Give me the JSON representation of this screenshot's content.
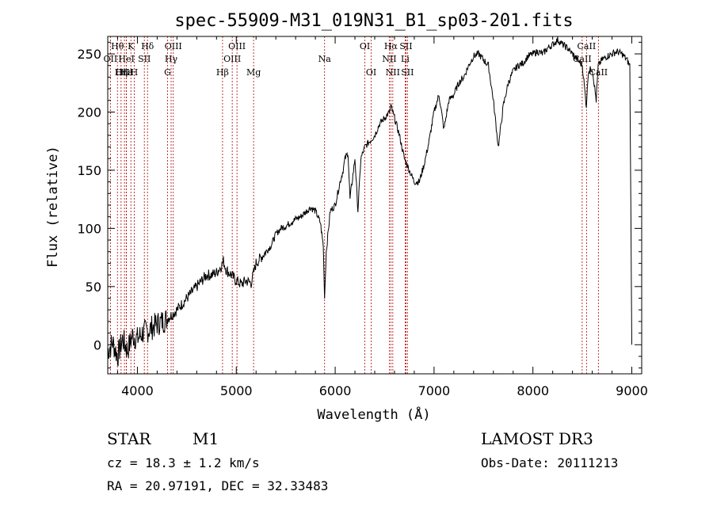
{
  "chart_data": {
    "type": "line",
    "title": "spec-55909-M31_019N31_B1_sp03-201.fits",
    "xlabel": "Wavelength (Å)",
    "ylabel": "Flux (relative)",
    "xlim": [
      3700,
      9100
    ],
    "ylim": [
      -25,
      265
    ],
    "x_ticks": [
      4000,
      5000,
      6000,
      7000,
      8000,
      9000
    ],
    "y_ticks": [
      0,
      50,
      100,
      150,
      200,
      250
    ],
    "series": [
      {
        "name": "spectrum",
        "x": [
          3700,
          3750,
          3800,
          3850,
          3900,
          3950,
          4000,
          4050,
          4100,
          4150,
          4200,
          4250,
          4300,
          4350,
          4400,
          4450,
          4500,
          4550,
          4600,
          4650,
          4700,
          4750,
          4800,
          4850,
          4870,
          4900,
          4950,
          5000,
          5050,
          5100,
          5150,
          5200,
          5250,
          5300,
          5350,
          5400,
          5450,
          5500,
          5550,
          5600,
          5650,
          5700,
          5750,
          5800,
          5850,
          5880,
          5893,
          5910,
          5950,
          6000,
          6050,
          6080,
          6100,
          6130,
          6150,
          6200,
          6230,
          6260,
          6300,
          6350,
          6400,
          6450,
          6500,
          6550,
          6563,
          6600,
          6650,
          6700,
          6750,
          6800,
          6850,
          6900,
          6950,
          7000,
          7050,
          7100,
          7150,
          7200,
          7250,
          7300,
          7350,
          7400,
          7450,
          7500,
          7550,
          7600,
          7650,
          7700,
          7750,
          7800,
          7850,
          7900,
          7950,
          8000,
          8050,
          8100,
          8150,
          8200,
          8250,
          8300,
          8350,
          8400,
          8450,
          8500,
          8540,
          8560,
          8600,
          8640,
          8660,
          8700,
          8750,
          8800,
          8850,
          8900,
          8950,
          8980,
          9000
        ],
        "y": [
          -5,
          2,
          -10,
          5,
          -5,
          8,
          5,
          10,
          12,
          15,
          18,
          20,
          22,
          26,
          30,
          35,
          40,
          45,
          50,
          55,
          60,
          60,
          62,
          68,
          72,
          64,
          60,
          55,
          52,
          55,
          53,
          70,
          75,
          80,
          85,
          95,
          100,
          102,
          105,
          108,
          110,
          114,
          118,
          115,
          105,
          85,
          40,
          80,
          115,
          120,
          140,
          150,
          160,
          165,
          125,
          160,
          115,
          160,
          170,
          175,
          180,
          190,
          195,
          200,
          205,
          195,
          180,
          160,
          150,
          140,
          140,
          155,
          175,
          200,
          215,
          185,
          210,
          215,
          225,
          230,
          240,
          248,
          250,
          245,
          240,
          210,
          170,
          205,
          225,
          235,
          240,
          242,
          248,
          250,
          252,
          250,
          255,
          258,
          262,
          258,
          255,
          250,
          245,
          240,
          205,
          235,
          238,
          210,
          240,
          245,
          248,
          250,
          252,
          250,
          245,
          240,
          0
        ]
      }
    ],
    "lines": [
      {
        "name": "Hθ",
        "x": 3798,
        "row": 1
      },
      {
        "name": "OII",
        "x": 3727,
        "row": 2
      },
      {
        "name": "OIII",
        "x": 3869,
        "row": 3
      },
      {
        "name": "Hε",
        "x": 3889,
        "row": 3
      },
      {
        "name": "Hη",
        "x": 3835,
        "row": 3
      },
      {
        "name": "K",
        "x": 3934,
        "row": 1
      },
      {
        "name": "HeI",
        "x": 3889,
        "row": 2
      },
      {
        "name": "H",
        "x": 3968,
        "row": 3
      },
      {
        "name": "Hδ",
        "x": 4102,
        "row": 1
      },
      {
        "name": "SII",
        "x": 4070,
        "row": 2
      },
      {
        "name": "OIII",
        "x": 4363,
        "row": 1
      },
      {
        "name": "Hγ",
        "x": 4341,
        "row": 2
      },
      {
        "name": "G",
        "x": 4305,
        "row": 3
      },
      {
        "name": "Hβ",
        "x": 4861,
        "row": 3
      },
      {
        "name": "OIII",
        "x": 5007,
        "row": 1
      },
      {
        "name": "OIII",
        "x": 4959,
        "row": 2
      },
      {
        "name": "Mg",
        "x": 5175,
        "row": 3
      },
      {
        "name": "Na",
        "x": 5893,
        "row": 2
      },
      {
        "name": "OI",
        "x": 6300,
        "row": 1
      },
      {
        "name": "OI",
        "x": 6364,
        "row": 3
      },
      {
        "name": "Hα",
        "x": 6563,
        "row": 1
      },
      {
        "name": "NII",
        "x": 6548,
        "row": 2
      },
      {
        "name": "NII",
        "x": 6583,
        "row": 3
      },
      {
        "name": "SII",
        "x": 6716,
        "row": 1
      },
      {
        "name": "Li",
        "x": 6708,
        "row": 2
      },
      {
        "name": "SII",
        "x": 6731,
        "row": 3
      },
      {
        "name": "CaII",
        "x": 8542,
        "row": 1
      },
      {
        "name": "CaII",
        "x": 8498,
        "row": 2
      },
      {
        "name": "CaII",
        "x": 8662,
        "row": 3
      }
    ]
  },
  "info": {
    "class": "STAR",
    "subclass": "M1",
    "survey": "LAMOST DR3",
    "cz": "cz = 18.3 ± 1.2 km/s",
    "obs_date": "Obs-Date: 20111213",
    "coords": "RA =  20.97191, DEC =  32.33483"
  }
}
